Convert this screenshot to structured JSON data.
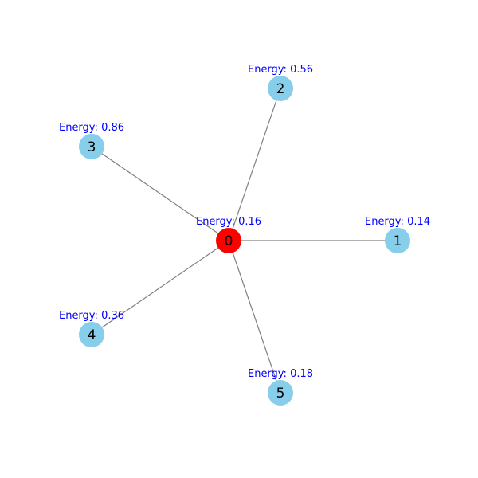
{
  "colors": {
    "center_node": "#ff0000",
    "leaf_node": "#87ceeb",
    "edge": "#808080",
    "energy_text": "#0000ff"
  },
  "graph": {
    "center": "0",
    "nodes": [
      {
        "id": "0",
        "label": "0",
        "energy_label": "Energy: 0.16",
        "energy": 0.16,
        "role": "center"
      },
      {
        "id": "1",
        "label": "1",
        "energy_label": "Energy: 0.14",
        "energy": 0.14,
        "role": "leaf"
      },
      {
        "id": "2",
        "label": "2",
        "energy_label": "Energy: 0.56",
        "energy": 0.56,
        "role": "leaf"
      },
      {
        "id": "3",
        "label": "3",
        "energy_label": "Energy: 0.86",
        "energy": 0.86,
        "role": "leaf"
      },
      {
        "id": "4",
        "label": "4",
        "energy_label": "Energy: 0.36",
        "energy": 0.36,
        "role": "leaf"
      },
      {
        "id": "5",
        "label": "5",
        "energy_label": "Energy: 0.18",
        "energy": 0.18,
        "role": "leaf"
      }
    ],
    "edges": [
      {
        "source": "0",
        "target": "1"
      },
      {
        "source": "0",
        "target": "2"
      },
      {
        "source": "0",
        "target": "3"
      },
      {
        "source": "0",
        "target": "4"
      },
      {
        "source": "0",
        "target": "5"
      }
    ]
  }
}
